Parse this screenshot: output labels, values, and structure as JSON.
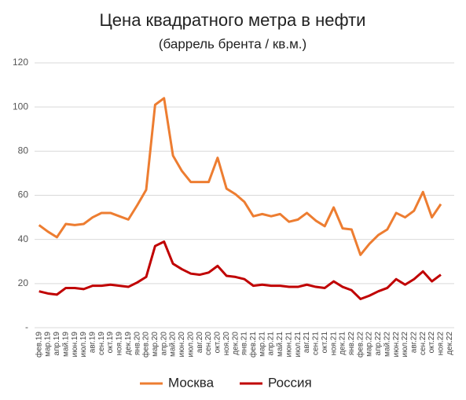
{
  "chart_data": {
    "type": "line",
    "title": "Цена квадратного метра в нефти",
    "subtitle": "(баррель брента / кв.м.)",
    "categories": [
      "фев.19",
      "мар.19",
      "апр.19",
      "май.19",
      "июн.19",
      "июл.19",
      "авг.19",
      "сен.19",
      "окт.19",
      "ноя.19",
      "дек.19",
      "янв.20",
      "фев.20",
      "мар.20",
      "апр.20",
      "май.20",
      "июн.20",
      "июл.20",
      "авг.20",
      "сен.20",
      "окт.20",
      "ноя.20",
      "дек.20",
      "янв.21",
      "фев.21",
      "мар.21",
      "апр.21",
      "май.21",
      "июн.21",
      "июл.21",
      "авг.21",
      "сен.21",
      "окт.21",
      "ноя.21",
      "дек.21",
      "янв.22",
      "фев.22",
      "мар.22",
      "апр.22",
      "май.22",
      "июн.22",
      "июл.22",
      "авг.22",
      "сен.22",
      "окт.22",
      "ноя.22",
      "дек.22"
    ],
    "series": [
      {
        "name": "Москва",
        "color": "#ed7d31",
        "values": [
          46.5,
          43.5,
          41,
          47,
          46.5,
          47,
          50,
          52,
          52,
          50.5,
          49,
          55.5,
          62.5,
          101,
          104,
          78,
          71,
          66,
          66,
          66,
          77,
          63,
          60.5,
          57,
          50.5,
          51.5,
          50.5,
          51.5,
          48,
          49,
          52,
          48.5,
          46,
          54.5,
          45,
          44.5,
          33,
          38,
          42,
          44.5,
          52,
          50,
          53,
          61.5,
          50,
          56,
          null
        ]
      },
      {
        "name": "Россия",
        "color": "#c00000",
        "values": [
          16.5,
          15.5,
          15,
          18,
          18,
          17.5,
          19,
          19,
          19.5,
          19,
          18.5,
          20.5,
          23,
          37,
          39,
          29,
          26.5,
          24.5,
          24,
          25,
          28,
          23.5,
          23,
          22,
          19,
          19.5,
          19,
          19,
          18.5,
          18.5,
          19.5,
          18.5,
          18,
          21,
          18.5,
          17,
          13,
          14.5,
          16.5,
          18,
          22,
          19.5,
          22,
          25.5,
          21,
          24,
          null
        ]
      }
    ],
    "ylim": [
      0,
      120
    ],
    "yticks": [
      {
        "value": 0,
        "label": "-"
      },
      20,
      40,
      60,
      80,
      100,
      120
    ],
    "grid": true,
    "legend": "bottom"
  }
}
